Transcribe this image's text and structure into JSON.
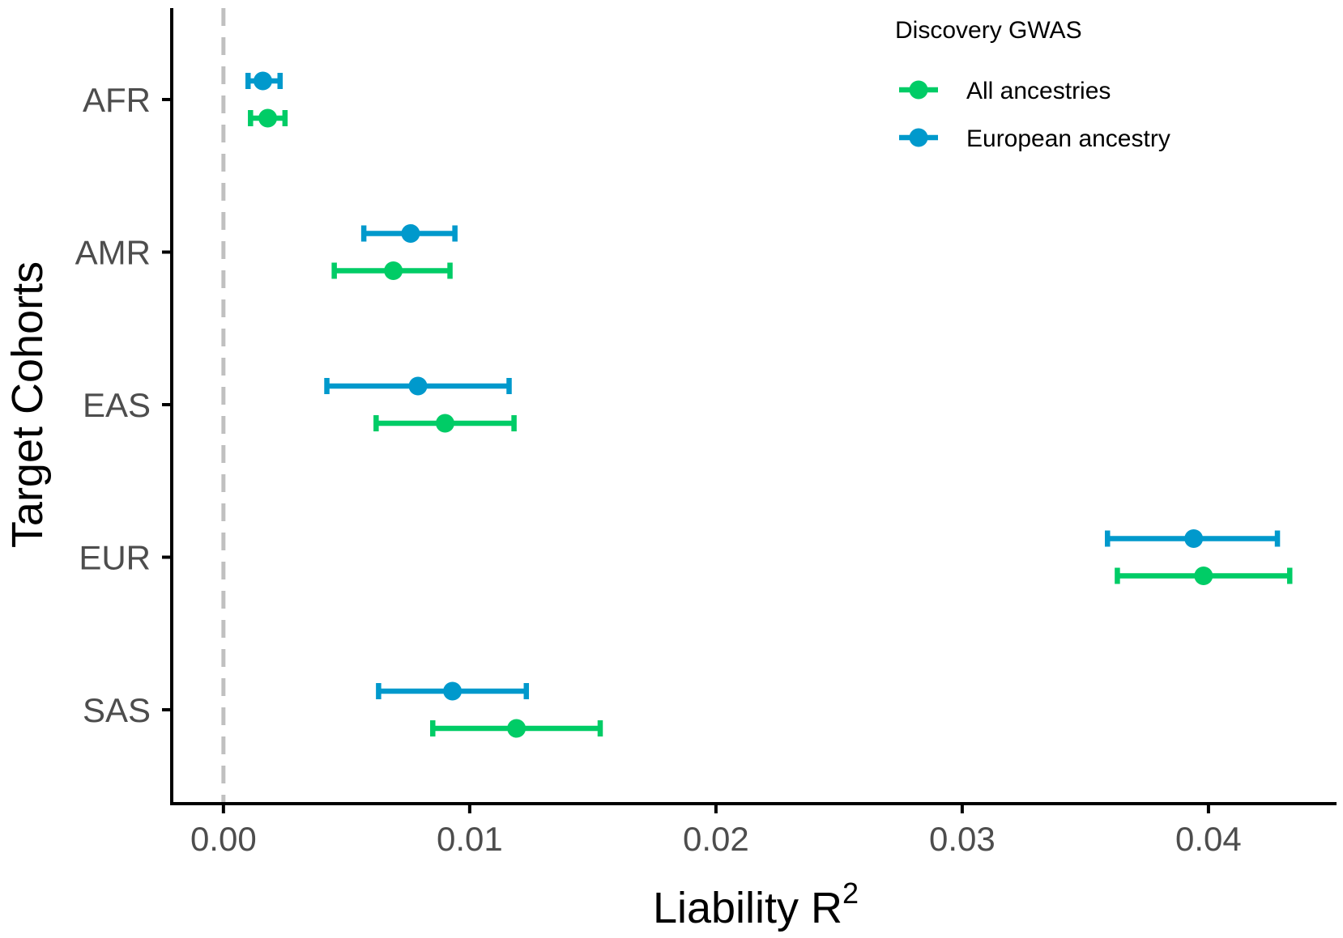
{
  "chart_data": {
    "type": "forest",
    "title": "",
    "xlabel": "Liability R",
    "xlabel_superscript": "2",
    "ylabel": "Target Cohorts",
    "xlim": [
      -0.0021,
      0.0452
    ],
    "x_ticks": [
      0.0,
      0.01,
      0.02,
      0.03,
      0.04
    ],
    "x_tick_labels": [
      "0.00",
      "0.01",
      "0.02",
      "0.03",
      "0.04"
    ],
    "reference_line": 0.0,
    "categories": [
      "AFR",
      "AMR",
      "EAS",
      "EUR",
      "SAS"
    ],
    "legend": {
      "title": "Discovery GWAS",
      "position": "top-right"
    },
    "series": [
      {
        "name": "All ancestries",
        "color": "#00cc66",
        "estimates": [
          0.0018,
          0.0069,
          0.009,
          0.0398,
          0.0119
        ],
        "lower": [
          0.0011,
          0.0045,
          0.0062,
          0.0363,
          0.0085
        ],
        "upper": [
          0.0025,
          0.0092,
          0.0118,
          0.0433,
          0.0153
        ]
      },
      {
        "name": "European ancestry",
        "color": "#0099cc",
        "estimates": [
          0.0016,
          0.0076,
          0.0079,
          0.0394,
          0.0093
        ],
        "lower": [
          0.001,
          0.0057,
          0.0042,
          0.0359,
          0.0063
        ],
        "upper": [
          0.0023,
          0.0094,
          0.0116,
          0.0428,
          0.0123
        ]
      }
    ]
  },
  "colors": {
    "axis": "#000000",
    "tick_text": "#4d4d4d",
    "reference_line": "#c0c0c0"
  }
}
